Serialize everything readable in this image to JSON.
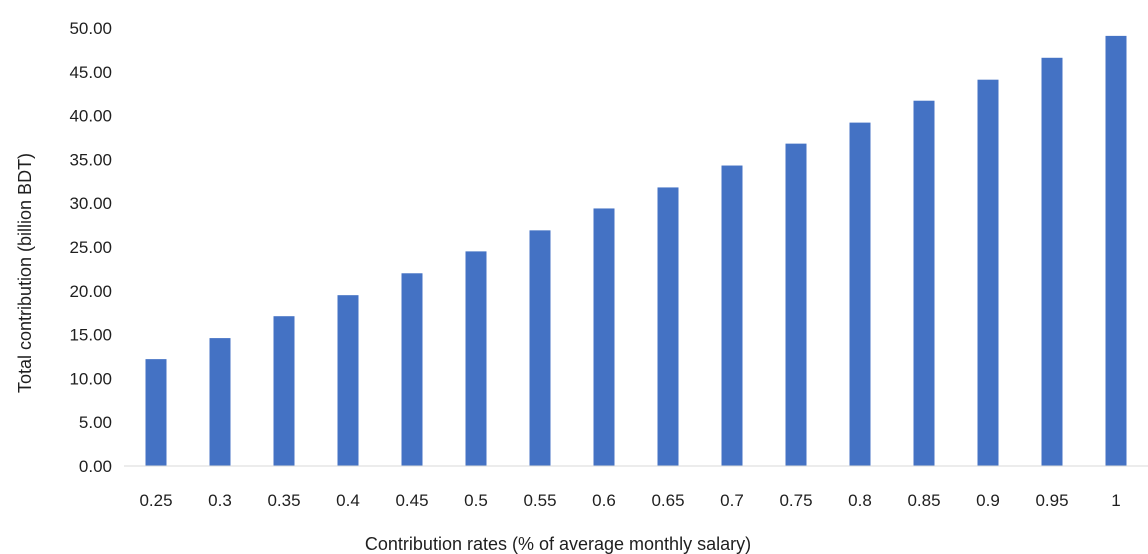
{
  "chart_data": {
    "type": "bar",
    "xlabel": "Contribution rates (% of average monthly salary)",
    "ylabel": "Total contribution (billion BDT)",
    "categories": [
      "0.25",
      "0.3",
      "0.35",
      "0.4",
      "0.45",
      "0.5",
      "0.55",
      "0.6",
      "0.65",
      "0.7",
      "0.75",
      "0.8",
      "0.85",
      "0.9",
      "0.95",
      "1"
    ],
    "values": [
      12.2,
      14.6,
      17.1,
      19.5,
      22.0,
      24.5,
      26.9,
      29.4,
      31.8,
      34.3,
      36.8,
      39.2,
      41.7,
      44.1,
      46.6,
      49.1
    ],
    "ylim": [
      0,
      50
    ],
    "yticks": [
      "0.00",
      "5.00",
      "10.00",
      "15.00",
      "20.00",
      "25.00",
      "30.00",
      "35.00",
      "40.00",
      "45.00",
      "50.00"
    ],
    "grid": false,
    "legend": "none",
    "bar_color": "#4472C4",
    "axis_color": "#D9D9D9"
  }
}
